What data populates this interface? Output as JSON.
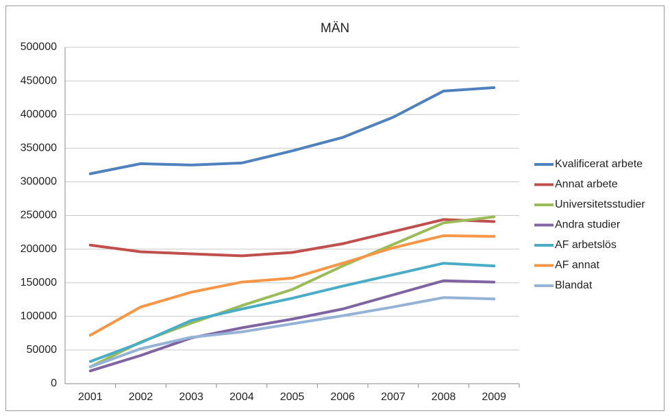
{
  "chart_data": {
    "type": "line",
    "title": "MÄN",
    "categories": [
      "2001",
      "2002",
      "2003",
      "2004",
      "2005",
      "2006",
      "2007",
      "2008",
      "2009"
    ],
    "series": [
      {
        "name": "Kvalificerat arbete",
        "color": "#4f81bd",
        "values": [
          312000,
          327000,
          325000,
          328000,
          346000,
          366000,
          396000,
          435000,
          440000
        ]
      },
      {
        "name": "Annat arbete",
        "color": "#c0504d",
        "values": [
          206000,
          196000,
          193000,
          190000,
          195000,
          208000,
          226000,
          244000,
          241000
        ]
      },
      {
        "name": "Universitetsstudier",
        "color": "#9bbb59",
        "values": [
          25000,
          62000,
          90000,
          116000,
          140000,
          175000,
          207000,
          239000,
          248000
        ]
      },
      {
        "name": "Andra studier",
        "color": "#8064a2",
        "values": [
          19000,
          42000,
          68000,
          83000,
          96000,
          111000,
          132000,
          153000,
          151000
        ]
      },
      {
        "name": "AF arbetslös",
        "color": "#4bacc6",
        "values": [
          33000,
          61000,
          94000,
          111000,
          127000,
          145000,
          162000,
          179000,
          175000
        ]
      },
      {
        "name": "AF annat",
        "color": "#f79646",
        "values": [
          72000,
          114000,
          136000,
          151000,
          157000,
          179000,
          202000,
          220000,
          219000
        ]
      },
      {
        "name": "Blandat",
        "color": "#95b3d7",
        "values": [
          25000,
          52000,
          69000,
          77000,
          89000,
          101000,
          114000,
          128000,
          126000
        ]
      }
    ],
    "ylim": [
      0,
      500000
    ],
    "yticks": [
      0,
      50000,
      100000,
      150000,
      200000,
      250000,
      300000,
      350000,
      400000,
      450000,
      500000
    ],
    "grid": true,
    "legend": "right"
  }
}
